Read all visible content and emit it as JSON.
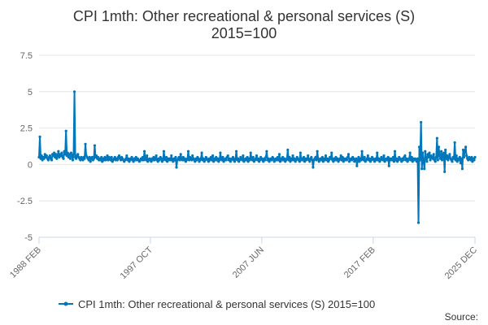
{
  "chart_data": {
    "type": "line",
    "title_line1": "CPI 1mth: Other recreational & personal services (S)",
    "title_line2": "2015=100",
    "xlabel": "",
    "ylabel": "",
    "ylim": [
      -5,
      7.5
    ],
    "yticks": [
      7.5,
      5,
      2.5,
      0,
      -2.5,
      -5
    ],
    "ytick_labels": [
      "7.5",
      "5",
      "2.5",
      "0",
      "-2.5",
      "-5"
    ],
    "xlim": [
      "1988-02",
      "2025-12"
    ],
    "xtick_labels": [
      "1988 FEB",
      "1997 OCT",
      "2007 JUN",
      "2017 FEB",
      "2025 DEC"
    ],
    "xtick_dates": [
      "1988-02",
      "1997-10",
      "2007-06",
      "2017-02",
      "2025-12"
    ],
    "grid": "horizontal",
    "legend_position": "bottom",
    "source_label": "Source:",
    "series_color": "#0077bb",
    "series": [
      {
        "name": "CPI 1mth: Other recreational & personal services (S) 2015=100",
        "start": "1988-02",
        "values": [
          0.5,
          1.9,
          0.4,
          0.6,
          0.3,
          0.5,
          0.4,
          0.7,
          0.5,
          0.6,
          0.4,
          0.3,
          0.5,
          0.6,
          0.4,
          0.3,
          0.7,
          0.6,
          0.8,
          0.5,
          0.7,
          0.4,
          0.6,
          0.9,
          0.5,
          0.7,
          0.6,
          0.8,
          0.5,
          0.4,
          0.9,
          0.7,
          2.3,
          0.6,
          0.8,
          0.5,
          0.7,
          0.4,
          0.8,
          0.6,
          0.3,
          0.7,
          5.0,
          0.5,
          0.4,
          0.6,
          0.7,
          0.5,
          0.4,
          0.3,
          0.5,
          0.4,
          0.3,
          0.5,
          0.4,
          1.4,
          0.6,
          0.5,
          0.4,
          0.3,
          0.5,
          0.2,
          0.4,
          0.5,
          0.3,
          0.4,
          1.3,
          0.5,
          0.6,
          0.4,
          0.5,
          0.3,
          0.4,
          0.3,
          0.5,
          0.2,
          0.4,
          0.3,
          0.5,
          0.3,
          0.4,
          0.6,
          0.3,
          0.5,
          0.4,
          0.3,
          0.5,
          0.2,
          0.3,
          0.4,
          0.5,
          0.3,
          0.4,
          0.3,
          0.5,
          0.6,
          0.4,
          0.3,
          0.5,
          0.4,
          0.3,
          0.2,
          0.3,
          0.4,
          0.6,
          0.3,
          0.4,
          0.2,
          0.3,
          0.4,
          0.5,
          0.3,
          0.2,
          0.4,
          0.3,
          0.5,
          0.3,
          0.4,
          0.3,
          0.2,
          0.3,
          0.4,
          0.3,
          0.5,
          0.3,
          0.9,
          0.4,
          0.3,
          0.6,
          0.2,
          0.3,
          0.4,
          0.3,
          0.2,
          0.4,
          0.3,
          0.5,
          0.3,
          0.4,
          0.6,
          0.3,
          0.2,
          0.4,
          0.3,
          0.5,
          0.4,
          0.2,
          0.3,
          0.9,
          0.4,
          0.3,
          0.5,
          0.2,
          0.4,
          0.3,
          0.4,
          0.3,
          0.6,
          0.3,
          0.2,
          0.4,
          0.3,
          0.5,
          -0.2,
          0.3,
          0.4,
          0.5,
          0.3,
          0.7,
          0.4,
          0.3,
          0.5,
          0.3,
          0.4,
          0.2,
          0.3,
          0.4,
          0.9,
          0.3,
          0.5,
          0.4,
          0.3,
          0.6,
          0.4,
          0.3,
          0.2,
          0.4,
          0.3,
          0.5,
          0.4,
          0.2,
          0.3,
          0.4,
          0.8,
          0.3,
          0.4,
          0.2,
          0.3,
          0.5,
          0.4,
          0.3,
          0.2,
          0.4,
          0.3,
          0.5,
          0.3,
          0.6,
          0.2,
          0.4,
          0.3,
          0.5,
          0.3,
          0.4,
          0.2,
          0.3,
          0.8,
          0.4,
          0.3,
          0.5,
          0.2,
          0.3,
          0.4,
          0.3,
          0.5,
          0.6,
          0.3,
          0.4,
          0.2,
          0.3,
          0.4,
          0.5,
          0.3,
          0.2,
          0.4,
          0.9,
          0.3,
          0.4,
          0.2,
          0.3,
          0.5,
          0.4,
          0.3,
          0.6,
          0.2,
          0.3,
          0.4,
          0.3,
          0.5,
          0.2,
          0.4,
          0.3,
          0.8,
          0.4,
          0.3,
          0.5,
          0.2,
          0.3,
          0.4,
          0.6,
          0.3,
          0.4,
          0.2,
          0.3,
          0.5,
          0.4,
          0.3,
          0.2,
          0.4,
          0.3,
          0.5,
          0.9,
          0.3,
          0.4,
          0.2,
          0.3,
          0.4,
          0.3,
          0.5,
          0.4,
          0.2,
          0.3,
          0.4,
          0.3,
          0.5,
          0.3,
          0.7,
          0.2,
          0.4,
          0.3,
          0.5,
          0.3,
          0.4,
          0.2,
          0.3,
          0.4,
          1.0,
          0.3,
          0.5,
          0.2,
          0.4,
          0.3,
          0.6,
          0.3,
          0.4,
          0.2,
          0.3,
          0.5,
          0.4,
          0.3,
          0.2,
          0.8,
          0.3,
          0.4,
          0.3,
          0.5,
          0.2,
          0.4,
          0.3,
          0.4,
          0.6,
          0.3,
          0.2,
          0.4,
          0.5,
          0.3,
          -0.2,
          0.3,
          0.4,
          0.5,
          0.3,
          0.9,
          0.4,
          0.2,
          0.3,
          0.4,
          0.3,
          0.5,
          0.2,
          0.4,
          0.3,
          0.6,
          0.3,
          0.4,
          0.2,
          0.3,
          0.5,
          0.4,
          0.8,
          0.3,
          0.2,
          0.4,
          0.3,
          0.5,
          0.3,
          0.4,
          0.2,
          0.3,
          0.4,
          0.6,
          0.3,
          0.5,
          0.2,
          0.4,
          0.3,
          0.4,
          0.3,
          0.5,
          0.7,
          0.2,
          0.3,
          0.4,
          0.3,
          0.5,
          0.4,
          0.2,
          0.3,
          0.4,
          -0.1,
          0.3,
          0.5,
          0.2,
          0.4,
          0.3,
          0.9,
          0.4,
          0.3,
          0.5,
          0.2,
          0.3,
          0.4,
          0.6,
          0.3,
          0.4,
          0.2,
          0.3,
          0.5,
          0.4,
          0.3,
          0.2,
          0.4,
          0.3,
          0.8,
          0.3,
          0.4,
          0.2,
          0.3,
          0.5,
          0.4,
          0.3,
          0.6,
          0.2,
          0.3,
          0.4,
          0.3,
          0.5,
          -0.1,
          0.4,
          0.3,
          0.4,
          0.3,
          0.5,
          0.2,
          0.9,
          0.3,
          0.4,
          0.2,
          0.3,
          0.5,
          0.4,
          0.3,
          0.2,
          0.4,
          0.3,
          0.5,
          0.6,
          0.3,
          0.4,
          0.2,
          0.3,
          0.4,
          0.8,
          0.3,
          0.5,
          0.2,
          0.4,
          0.3,
          0.4,
          0.3,
          0.2,
          0.4,
          -4.0,
          1.2,
          0.3,
          2.9,
          -0.3,
          0.8,
          0.2,
          -0.3,
          0.9,
          0.4,
          0.2,
          0.7,
          0.5,
          0.8,
          0.3,
          0.6,
          0.5,
          0.4,
          0.7,
          0.3,
          0.2,
          0.5,
          1.8,
          0.3,
          1.2,
          0.6,
          0.4,
          0.9,
          0.3,
          0.7,
          0.8,
          -0.5,
          1.0,
          0.4,
          0.6,
          0.3,
          0.5,
          0.7,
          0.4,
          0.3,
          0.2,
          0.5,
          0.4,
          1.5,
          0.3,
          0.6,
          0.2,
          0.4,
          0.3,
          0.5,
          0.1,
          0.4,
          -0.3,
          1.0,
          0.5,
          0.9,
          1.2,
          0.6,
          0.4,
          0.3,
          0.5,
          0.4,
          0.3,
          0.5,
          0.2,
          0.4,
          0.3,
          0.5
        ]
      }
    ]
  }
}
